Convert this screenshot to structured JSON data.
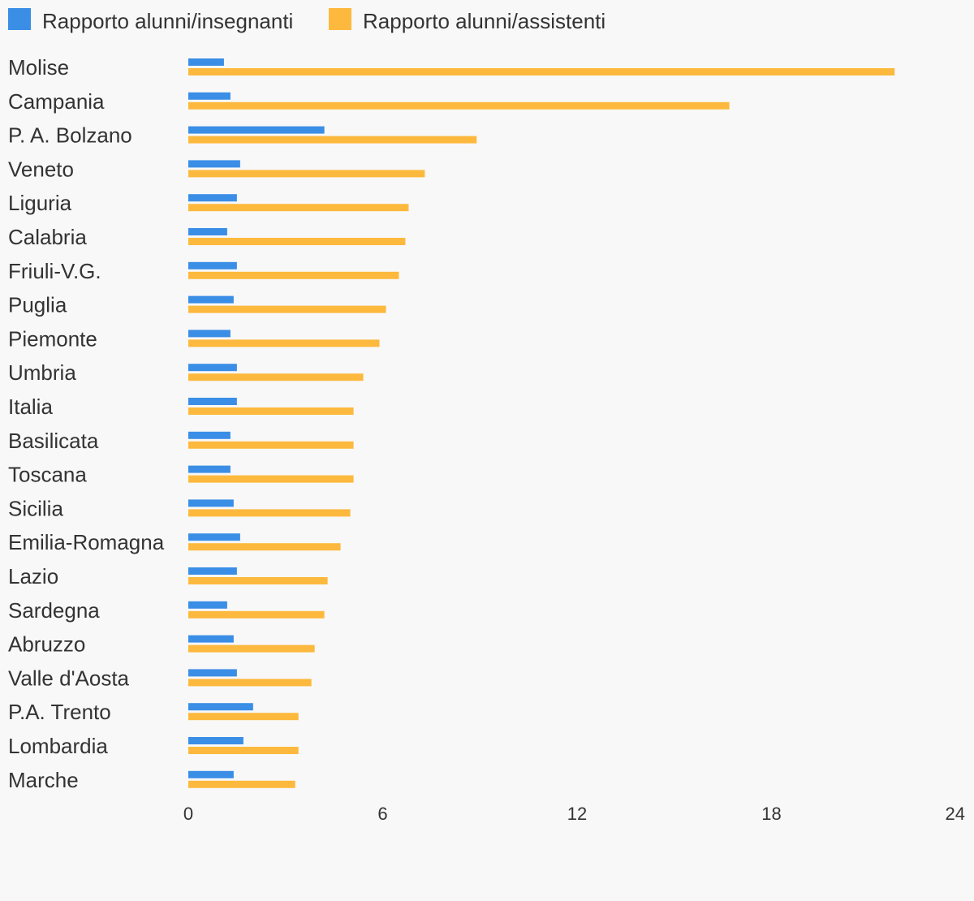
{
  "chart_data": {
    "type": "bar",
    "orientation": "horizontal",
    "categories": [
      "Molise",
      "Campania",
      "P. A. Bolzano",
      "Veneto",
      "Liguria",
      "Calabria",
      "Friuli-V.G.",
      "Puglia",
      "Piemonte",
      "Umbria",
      "Italia",
      "Basilicata",
      "Toscana",
      "Sicilia",
      "Emilia-Romagna",
      "Lazio",
      "Sardegna",
      "Abruzzo",
      "Valle d'Aosta",
      "P.A. Trento",
      "Lombardia",
      "Marche"
    ],
    "series": [
      {
        "name": "Rapporto alunni/insegnanti",
        "color": "#3a8ee6",
        "values": [
          1.1,
          1.3,
          4.2,
          1.6,
          1.5,
          1.2,
          1.5,
          1.4,
          1.3,
          1.5,
          1.5,
          1.3,
          1.3,
          1.4,
          1.6,
          1.5,
          1.2,
          1.4,
          1.5,
          2.0,
          1.7,
          1.4
        ]
      },
      {
        "name": "Rapporto alunni/assistenti",
        "color": "#fdb93d",
        "values": [
          21.8,
          16.7,
          8.9,
          7.3,
          6.8,
          6.7,
          6.5,
          6.1,
          5.9,
          5.4,
          5.1,
          5.1,
          5.1,
          5.0,
          4.7,
          4.3,
          4.2,
          3.9,
          3.8,
          3.4,
          3.4,
          3.3
        ]
      }
    ],
    "xlim": [
      0,
      24
    ],
    "xticks": [
      0,
      6,
      12,
      18,
      24
    ],
    "legend_position": "top-left",
    "grid": false
  }
}
